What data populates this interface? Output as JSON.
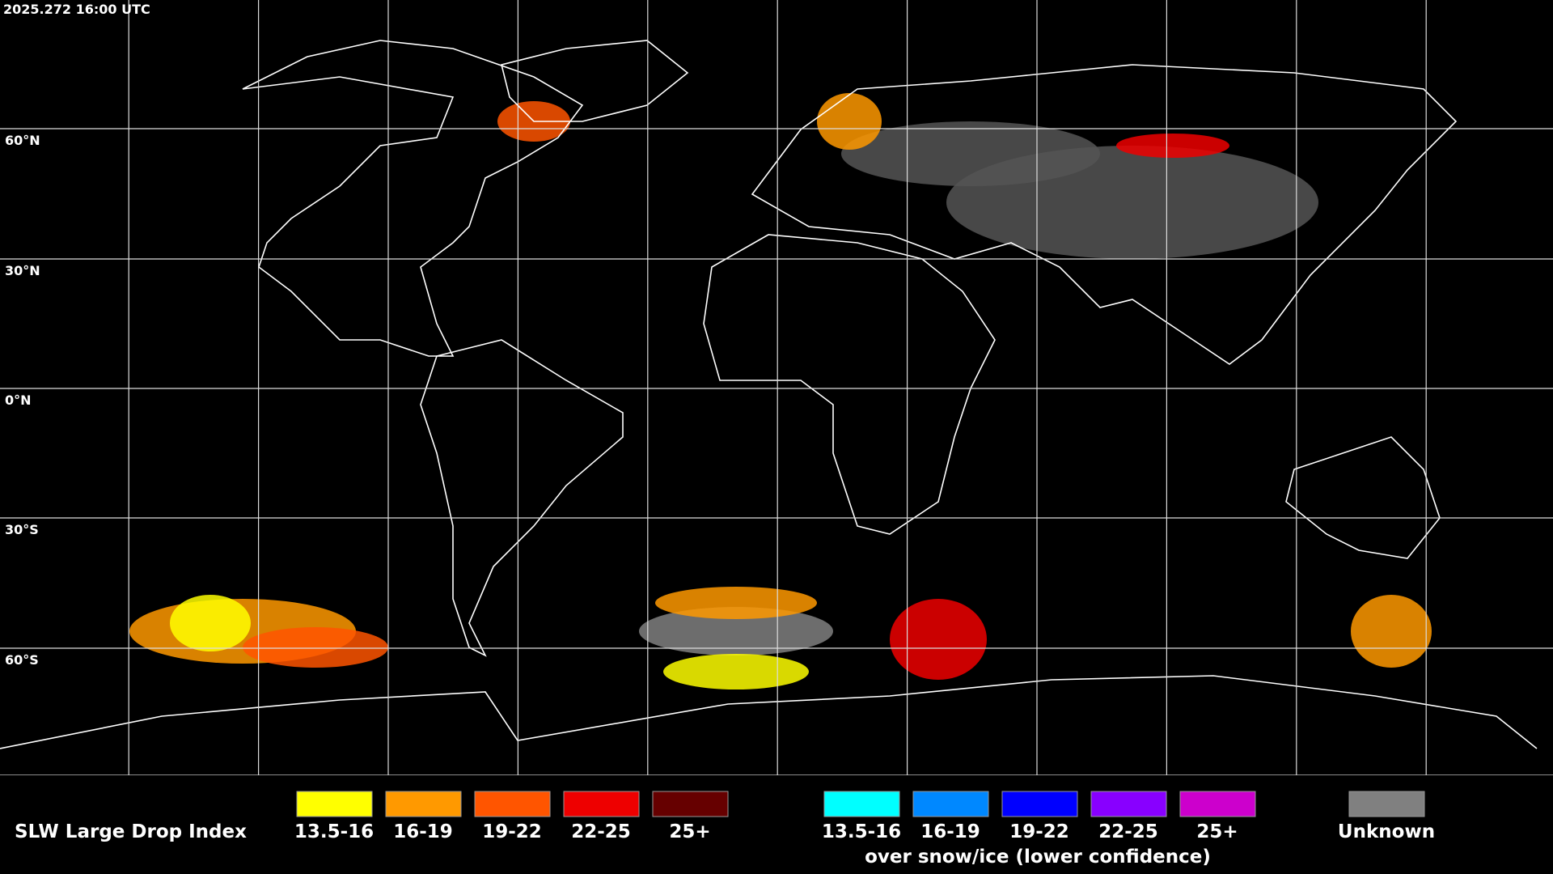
{
  "header": {
    "timestamp": "2025.272 16:00 UTC"
  },
  "map": {
    "lat_labels": [
      "60°N",
      "30°N",
      "0°N",
      "30°S",
      "60°S"
    ]
  },
  "legend": {
    "title": "SLW Large Drop Index",
    "items": [
      {
        "label": "13.5-16",
        "color": "#ffff00"
      },
      {
        "label": "16-19",
        "color": "#ff9900"
      },
      {
        "label": "19-22",
        "color": "#ff5500"
      },
      {
        "label": "22-25",
        "color": "#ee0000"
      },
      {
        "label": "25+",
        "color": "#660000"
      }
    ],
    "snow_items": [
      {
        "label": "13.5-16",
        "color": "#00ffff"
      },
      {
        "label": "16-19",
        "color": "#0088ff"
      },
      {
        "label": "19-22",
        "color": "#0000ff"
      },
      {
        "label": "22-25",
        "color": "#8800ff"
      },
      {
        "label": "25+",
        "color": "#cc00cc"
      }
    ],
    "snow_note": "over snow/ice (lower confidence)",
    "unknown": {
      "label": "Unknown",
      "color": "#808080"
    }
  }
}
